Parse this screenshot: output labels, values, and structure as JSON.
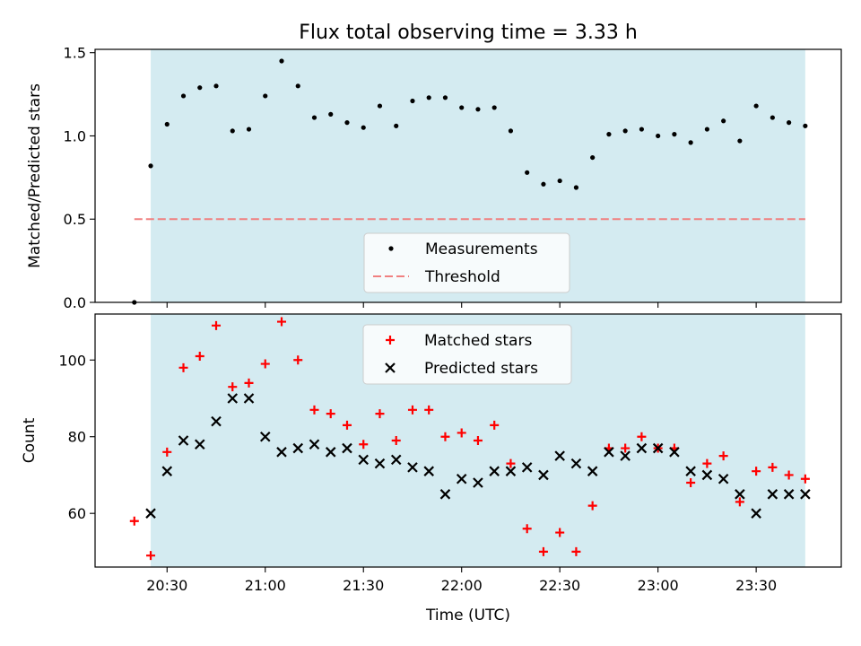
{
  "figure": {
    "title": "Flux total observing time = 3.33 h",
    "xlabel": "Time (UTC)"
  },
  "colors": {
    "shade": "#d4ebf1",
    "measurement": "#000000",
    "threshold": "#f08080",
    "matched": "#ff0000",
    "predicted": "#000000"
  },
  "chart_data": [
    {
      "type": "scatter",
      "ylabel": "Matched/Predicted stars",
      "ylim": [
        0,
        1.52
      ],
      "yticks": [
        0.0,
        0.5,
        1.0,
        1.5
      ],
      "xlim": [
        "20:08",
        "23:56"
      ],
      "shaded_interval": [
        "20:25",
        "23:45"
      ],
      "legend": {
        "placement": "lower center",
        "entries": [
          "Measurements",
          "Threshold"
        ]
      },
      "threshold": {
        "name": "Threshold",
        "value": 0.5,
        "x_start": "20:20",
        "x_end": "23:45"
      },
      "series": [
        {
          "name": "Measurements",
          "points": [
            [
              "20:20",
              0.0
            ],
            [
              "20:25",
              0.82
            ],
            [
              "20:30",
              1.07
            ],
            [
              "20:35",
              1.24
            ],
            [
              "20:40",
              1.29
            ],
            [
              "20:45",
              1.3
            ],
            [
              "20:50",
              1.03
            ],
            [
              "20:55",
              1.04
            ],
            [
              "21:00",
              1.24
            ],
            [
              "21:05",
              1.45
            ],
            [
              "21:10",
              1.3
            ],
            [
              "21:15",
              1.11
            ],
            [
              "21:20",
              1.13
            ],
            [
              "21:25",
              1.08
            ],
            [
              "21:30",
              1.05
            ],
            [
              "21:35",
              1.18
            ],
            [
              "21:40",
              1.06
            ],
            [
              "21:45",
              1.21
            ],
            [
              "21:50",
              1.23
            ],
            [
              "21:55",
              1.23
            ],
            [
              "22:00",
              1.17
            ],
            [
              "22:05",
              1.16
            ],
            [
              "22:10",
              1.17
            ],
            [
              "22:15",
              1.03
            ],
            [
              "22:20",
              0.78
            ],
            [
              "22:25",
              0.71
            ],
            [
              "22:30",
              0.73
            ],
            [
              "22:35",
              0.69
            ],
            [
              "22:40",
              0.87
            ],
            [
              "22:45",
              1.01
            ],
            [
              "22:50",
              1.03
            ],
            [
              "22:55",
              1.04
            ],
            [
              "23:00",
              1.0
            ],
            [
              "23:05",
              1.01
            ],
            [
              "23:10",
              0.96
            ],
            [
              "23:15",
              1.04
            ],
            [
              "23:20",
              1.09
            ],
            [
              "23:25",
              0.97
            ],
            [
              "23:30",
              1.18
            ],
            [
              "23:35",
              1.11
            ],
            [
              "23:40",
              1.08
            ],
            [
              "23:45",
              1.06
            ]
          ]
        }
      ]
    },
    {
      "type": "scatter",
      "ylabel": "Count",
      "ylim": [
        46,
        112
      ],
      "yticks": [
        60,
        80,
        100
      ],
      "xlim": [
        "20:08",
        "23:56"
      ],
      "xticks": [
        "20:30",
        "21:00",
        "21:30",
        "22:00",
        "22:30",
        "23:00",
        "23:30"
      ],
      "shaded_interval": [
        "20:25",
        "23:45"
      ],
      "legend": {
        "placement": "upper center",
        "entries": [
          "Matched stars",
          "Predicted stars"
        ]
      },
      "series": [
        {
          "name": "Matched stars",
          "marker": "plus",
          "points": [
            [
              "20:20",
              58
            ],
            [
              "20:25",
              49
            ],
            [
              "20:30",
              76
            ],
            [
              "20:35",
              98
            ],
            [
              "20:40",
              101
            ],
            [
              "20:45",
              109
            ],
            [
              "20:50",
              93
            ],
            [
              "20:55",
              94
            ],
            [
              "21:00",
              99
            ],
            [
              "21:05",
              110
            ],
            [
              "21:10",
              100
            ],
            [
              "21:15",
              87
            ],
            [
              "21:20",
              86
            ],
            [
              "21:25",
              83
            ],
            [
              "21:30",
              78
            ],
            [
              "21:35",
              86
            ],
            [
              "21:40",
              79
            ],
            [
              "21:45",
              87
            ],
            [
              "21:50",
              87
            ],
            [
              "21:55",
              80
            ],
            [
              "22:00",
              81
            ],
            [
              "22:05",
              79
            ],
            [
              "22:10",
              83
            ],
            [
              "22:15",
              73
            ],
            [
              "22:20",
              56
            ],
            [
              "22:25",
              50
            ],
            [
              "22:30",
              55
            ],
            [
              "22:35",
              50
            ],
            [
              "22:40",
              62
            ],
            [
              "22:45",
              77
            ],
            [
              "22:50",
              77
            ],
            [
              "22:55",
              80
            ],
            [
              "23:00",
              77
            ],
            [
              "23:05",
              77
            ],
            [
              "23:10",
              68
            ],
            [
              "23:15",
              73
            ],
            [
              "23:20",
              75
            ],
            [
              "23:25",
              63
            ],
            [
              "23:30",
              71
            ],
            [
              "23:35",
              72
            ],
            [
              "23:40",
              70
            ],
            [
              "23:45",
              69
            ]
          ]
        },
        {
          "name": "Predicted stars",
          "marker": "x",
          "points": [
            [
              "20:25",
              60
            ],
            [
              "20:30",
              71
            ],
            [
              "20:35",
              79
            ],
            [
              "20:40",
              78
            ],
            [
              "20:45",
              84
            ],
            [
              "20:50",
              90
            ],
            [
              "20:55",
              90
            ],
            [
              "21:00",
              80
            ],
            [
              "21:05",
              76
            ],
            [
              "21:10",
              77
            ],
            [
              "21:15",
              78
            ],
            [
              "21:20",
              76
            ],
            [
              "21:25",
              77
            ],
            [
              "21:30",
              74
            ],
            [
              "21:35",
              73
            ],
            [
              "21:40",
              74
            ],
            [
              "21:45",
              72
            ],
            [
              "21:50",
              71
            ],
            [
              "21:55",
              65
            ],
            [
              "22:00",
              69
            ],
            [
              "22:05",
              68
            ],
            [
              "22:10",
              71
            ],
            [
              "22:15",
              71
            ],
            [
              "22:20",
              72
            ],
            [
              "22:25",
              70
            ],
            [
              "22:30",
              75
            ],
            [
              "22:35",
              73
            ],
            [
              "22:40",
              71
            ],
            [
              "22:45",
              76
            ],
            [
              "22:50",
              75
            ],
            [
              "22:55",
              77
            ],
            [
              "23:00",
              77
            ],
            [
              "23:05",
              76
            ],
            [
              "23:10",
              71
            ],
            [
              "23:15",
              70
            ],
            [
              "23:20",
              69
            ],
            [
              "23:25",
              65
            ],
            [
              "23:30",
              60
            ],
            [
              "23:35",
              65
            ],
            [
              "23:40",
              65
            ],
            [
              "23:45",
              65
            ]
          ]
        }
      ]
    }
  ]
}
